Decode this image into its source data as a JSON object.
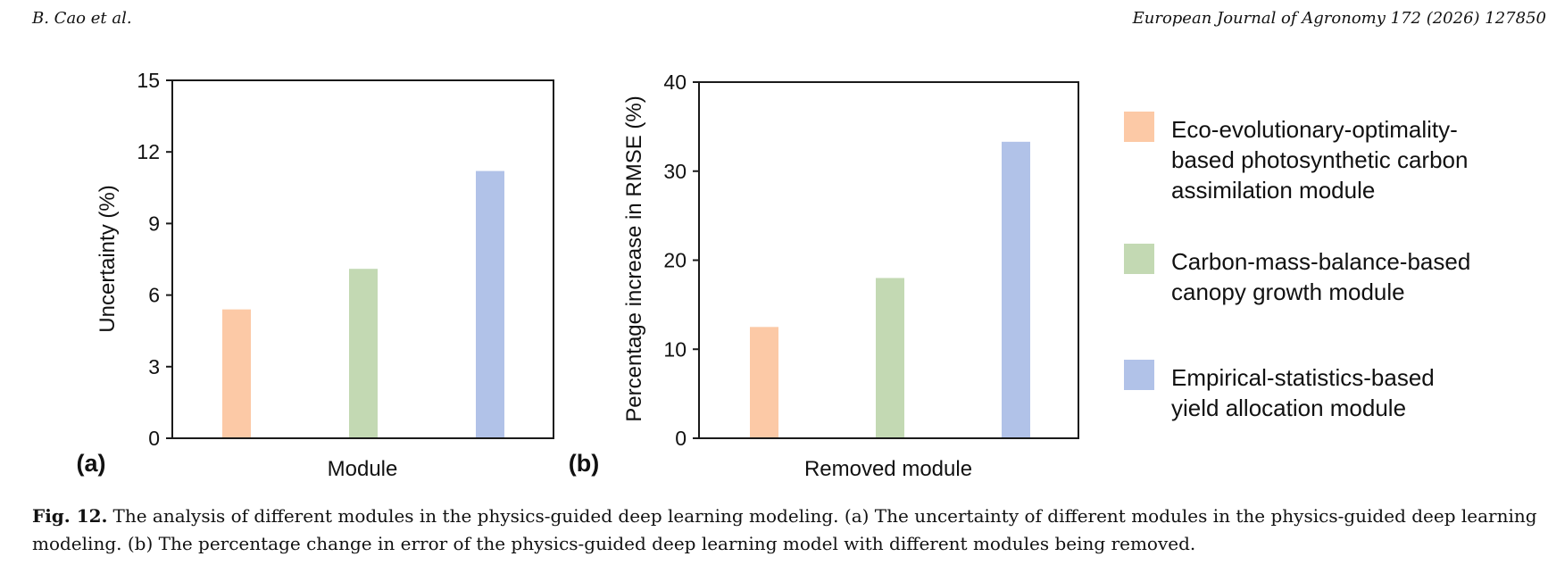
{
  "header": {
    "authors": "B. Cao et al.",
    "journal": "European Journal of Agronomy 172 (2026) 127850"
  },
  "colors": {
    "eco": "#FCC9A6",
    "carbon": "#C3D9B3",
    "empirical": "#B1C2E8"
  },
  "legend": [
    {
      "color_key": "eco",
      "lines": [
        "Eco-evolutionary-optimality-",
        "based photosynthetic carbon",
        "assimilation module"
      ]
    },
    {
      "color_key": "carbon",
      "lines": [
        "Carbon-mass-balance-based",
        "canopy growth module"
      ]
    },
    {
      "color_key": "empirical",
      "lines": [
        "Empirical-statistics-based",
        "yield allocation module"
      ]
    }
  ],
  "chart_data": [
    {
      "type": "bar",
      "panel_label": "(a)",
      "xlabel": "Module",
      "ylabel": "Uncertainty (%)",
      "ylim": [
        0,
        15
      ],
      "yticks": [
        0,
        3,
        6,
        9,
        12,
        15
      ],
      "grid": false,
      "bars": [
        {
          "color_key": "eco",
          "value": 5.4
        },
        {
          "color_key": "carbon",
          "value": 7.1
        },
        {
          "color_key": "empirical",
          "value": 11.2
        }
      ]
    },
    {
      "type": "bar",
      "panel_label": "(b)",
      "xlabel": "Removed module",
      "ylabel": "Percentage increase in RMSE (%)",
      "ylim": [
        0,
        40
      ],
      "yticks": [
        0,
        10,
        20,
        30,
        40
      ],
      "grid": false,
      "bars": [
        {
          "color_key": "eco",
          "value": 12.5
        },
        {
          "color_key": "carbon",
          "value": 18.0
        },
        {
          "color_key": "empirical",
          "value": 33.3
        }
      ]
    }
  ],
  "caption": {
    "label": "Fig. 12.",
    "text": "The analysis of different modules in the physics-guided deep learning modeling. (a) The uncertainty of different modules in the physics-guided deep learning modeling. (b) The percentage change in error of the physics-guided deep learning model with different modules being removed."
  }
}
